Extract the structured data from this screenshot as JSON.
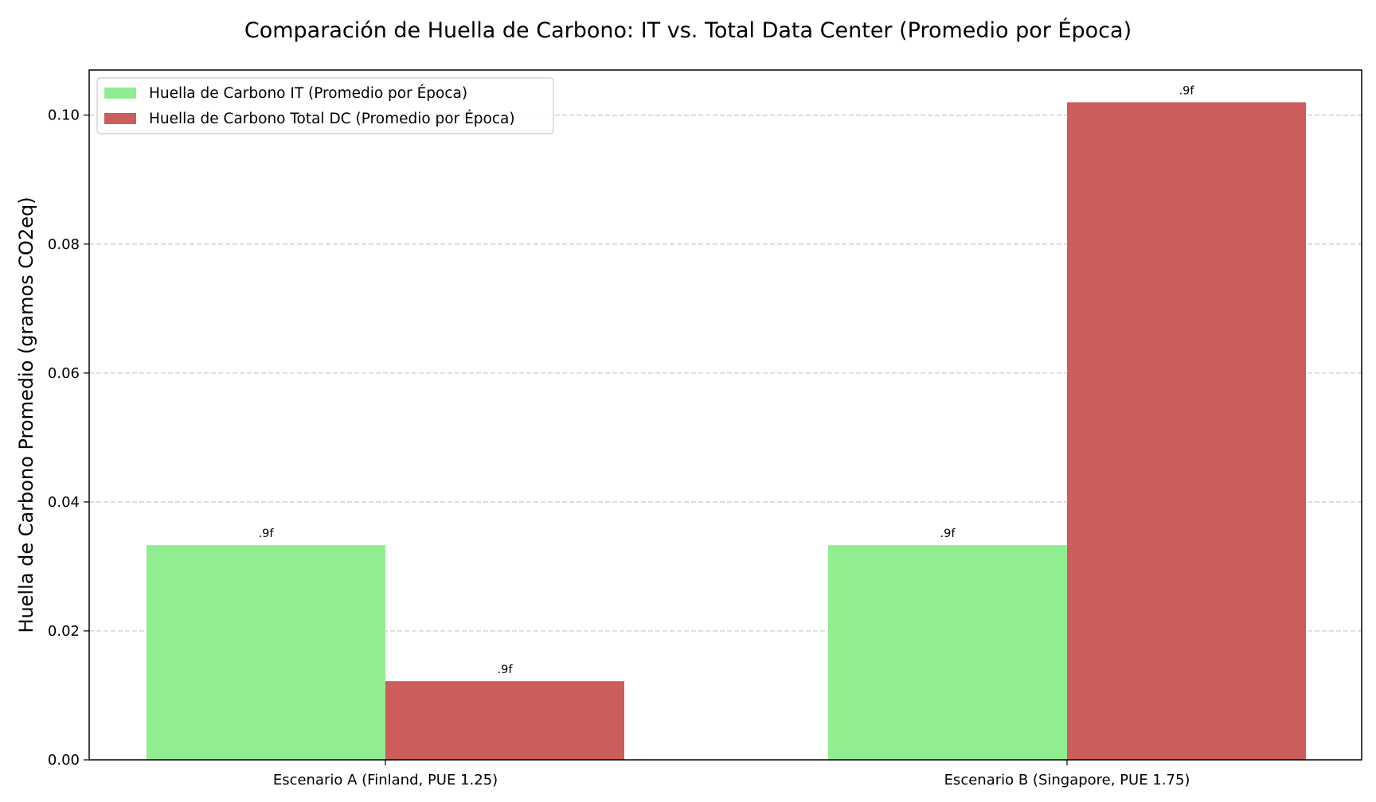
{
  "chart_data": {
    "type": "bar",
    "title": "Comparación de Huella de Carbono: IT vs. Total Data Center (Promedio por Época)",
    "xlabel": "",
    "ylabel": "Huella de Carbono Promedio (gramos CO2eq)",
    "categories": [
      "Escenario A (Finland, PUE 1.25)",
      "Escenario B (Singapore, PUE 1.75)"
    ],
    "series": [
      {
        "name": "Huella de Carbono IT (Promedio por Época)",
        "color": "#90EE90",
        "values": [
          0.0333,
          0.0333
        ],
        "data_labels": [
          ".9f",
          ".9f"
        ]
      },
      {
        "name": "Huella de Carbono Total DC (Promedio por Época)",
        "color": "#CD5C5C",
        "values": [
          0.0122,
          0.102
        ],
        "data_labels": [
          ".9f",
          ".9f"
        ]
      }
    ],
    "ylim": [
      0,
      0.107
    ],
    "yticks": [
      0.0,
      0.02,
      0.04,
      0.06,
      0.08,
      0.1
    ],
    "ytick_labels": [
      "0.00",
      "0.02",
      "0.04",
      "0.06",
      "0.08",
      "0.10"
    ],
    "grid": "y-dashed",
    "legend_position": "top-left"
  }
}
